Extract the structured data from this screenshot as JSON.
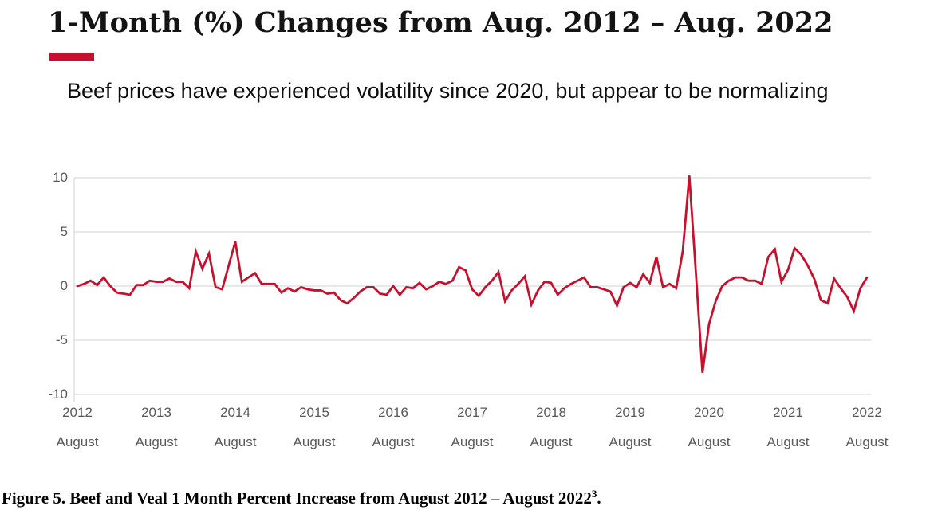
{
  "header": {
    "title": "1-Month (%) Changes from Aug. 2012 – Aug. 2022",
    "subtitle": "Beef prices have experienced volatility since 2020, but appear to be normalizing"
  },
  "caption": {
    "text": "Figure 5. Beef and Veal 1 Month Percent Increase from August 2012 – August 2022",
    "superscript": "3",
    "period": "."
  },
  "colors": {
    "line": "#c8102e",
    "accent_bar": "#c8102e",
    "grid": "#d9d9d9",
    "axis_text": "#595959"
  },
  "chart_data": {
    "type": "line",
    "title": "1-Month (%) Changes from Aug. 2012 – Aug. 2022",
    "series_name": "Beef and Veal 1-month percent change",
    "frequency": "monthly",
    "x_start": "August 2012",
    "x_end": "August 2022",
    "ylim": [
      -10,
      10
    ],
    "y_ticks": [
      10,
      5,
      0,
      -5,
      -10
    ],
    "grid": true,
    "legend": false,
    "x_tick_years": [
      "2012",
      "2013",
      "2014",
      "2015",
      "2016",
      "2017",
      "2018",
      "2019",
      "2020",
      "2021",
      "2022"
    ],
    "x_tick_sublabel": "August",
    "values": [
      0.0,
      0.2,
      0.5,
      0.1,
      0.8,
      0.0,
      -0.6,
      -0.7,
      -0.8,
      0.1,
      0.1,
      0.5,
      0.4,
      0.4,
      0.7,
      0.4,
      0.4,
      -0.2,
      3.2,
      1.6,
      3.0,
      -0.1,
      -0.3,
      1.9,
      4.1,
      0.4,
      0.8,
      1.2,
      0.2,
      0.2,
      0.2,
      -0.6,
      -0.2,
      -0.5,
      -0.1,
      -0.3,
      -0.4,
      -0.4,
      -0.7,
      -0.6,
      -1.3,
      -1.6,
      -1.1,
      -0.5,
      -0.1,
      -0.1,
      -0.7,
      -0.8,
      0.0,
      -0.8,
      -0.1,
      -0.2,
      0.3,
      -0.3,
      0.0,
      0.4,
      0.2,
      0.5,
      1.75,
      1.45,
      -0.3,
      -0.9,
      -0.1,
      0.5,
      1.3,
      -1.4,
      -0.4,
      0.2,
      0.9,
      -1.7,
      -0.4,
      0.4,
      0.3,
      -0.8,
      -0.2,
      0.2,
      0.5,
      0.8,
      -0.1,
      -0.1,
      -0.3,
      -0.5,
      -1.8,
      -0.1,
      0.3,
      -0.1,
      1.1,
      0.3,
      2.7,
      -0.1,
      0.2,
      -0.2,
      3.2,
      10.2,
      1.2,
      -8.0,
      -3.5,
      -1.4,
      0.0,
      0.5,
      0.8,
      0.8,
      0.5,
      0.5,
      0.2,
      2.7,
      3.4,
      0.4,
      1.5,
      3.5,
      2.9,
      1.9,
      0.65,
      -1.3,
      -1.6,
      0.7,
      -0.2,
      -1.0,
      -2.3,
      -0.2,
      0.8
    ]
  }
}
